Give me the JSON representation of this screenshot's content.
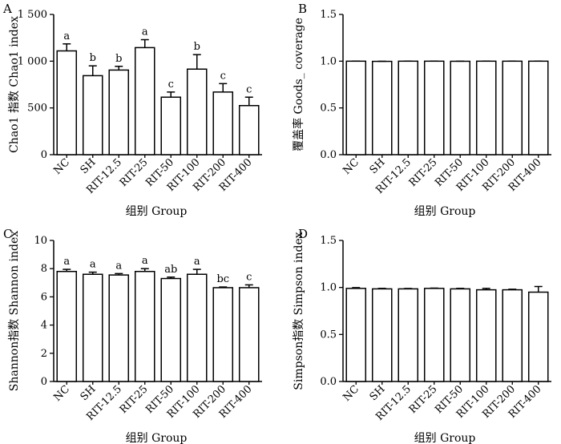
{
  "chart_data": [
    {
      "panel": "A",
      "type": "bar",
      "categories": [
        "NC",
        "SH",
        "RIT-12.5",
        "RIT-25",
        "RIT-50",
        "RIT-100",
        "RIT-200",
        "RIT-400"
      ],
      "values": [
        1110,
        845,
        905,
        1145,
        615,
        915,
        670,
        525
      ],
      "errors": [
        75,
        105,
        40,
        85,
        55,
        155,
        90,
        90
      ],
      "labels": [
        "a",
        "b",
        "b",
        "a",
        "c",
        "b",
        "c",
        "c"
      ],
      "ylim": [
        0,
        1500
      ],
      "yticks": [
        0,
        500,
        1000,
        1500
      ],
      "ytick_labels": [
        "0",
        "500",
        "1 000",
        "1 500"
      ],
      "ylabel": "Chao1 指数  Chao1 index",
      "xlabel": "组别  Group"
    },
    {
      "panel": "B",
      "type": "bar",
      "categories": [
        "NC",
        "SH",
        "RIT-12.5",
        "RIT-25",
        "RIT-50",
        "RIT-100",
        "RIT-200",
        "RIT-400"
      ],
      "values": [
        1.0,
        0.998,
        1.0,
        1.0,
        0.999,
        1.0,
        1.0,
        1.0
      ],
      "errors": [
        0.001,
        0.001,
        0.001,
        0.001,
        0.001,
        0.001,
        0.001,
        0.001
      ],
      "labels": [],
      "ylim": [
        0,
        1.5
      ],
      "yticks": [
        0,
        0.5,
        1.0,
        1.5
      ],
      "ytick_labels": [
        "0.0",
        "0.5",
        "1.0",
        "1.5"
      ],
      "ylabel": "覆盖率  Goods_ coverage",
      "xlabel": "组别  Group"
    },
    {
      "panel": "C",
      "type": "bar",
      "categories": [
        "NC",
        "SH",
        "RIT-12.5",
        "RIT-25",
        "RIT-50",
        "RIT-100",
        "RIT-200",
        "RIT-400"
      ],
      "values": [
        7.8,
        7.6,
        7.55,
        7.8,
        7.3,
        7.6,
        6.65,
        6.65
      ],
      "errors": [
        0.15,
        0.15,
        0.1,
        0.2,
        0.1,
        0.35,
        0.05,
        0.2
      ],
      "labels": [
        "a",
        "a",
        "a",
        "a",
        "ab",
        "a",
        "bc",
        "c"
      ],
      "ylim": [
        0,
        10
      ],
      "yticks": [
        0,
        2,
        4,
        6,
        8,
        10
      ],
      "ytick_labels": [
        "0",
        "2",
        "4",
        "6",
        "8",
        "10"
      ],
      "ylabel": "Shannon指数  Shannon index",
      "xlabel": "组别  Group"
    },
    {
      "panel": "D",
      "type": "bar",
      "categories": [
        "NC",
        "SH",
        "RIT-12.5",
        "RIT-25",
        "RIT-50",
        "RIT-100",
        "RIT-200",
        "RIT-400"
      ],
      "values": [
        0.99,
        0.985,
        0.985,
        0.99,
        0.985,
        0.975,
        0.975,
        0.95
      ],
      "errors": [
        0.008,
        0.005,
        0.004,
        0.003,
        0.005,
        0.015,
        0.006,
        0.06
      ],
      "labels": [],
      "ylim": [
        0,
        1.5
      ],
      "yticks": [
        0,
        0.5,
        1.0,
        1.5
      ],
      "ytick_labels": [
        "0.0",
        "0.5",
        "1.0",
        "1.5"
      ],
      "ylabel": "Simpson指数  Simpson index",
      "xlabel": "组别  Group"
    }
  ]
}
